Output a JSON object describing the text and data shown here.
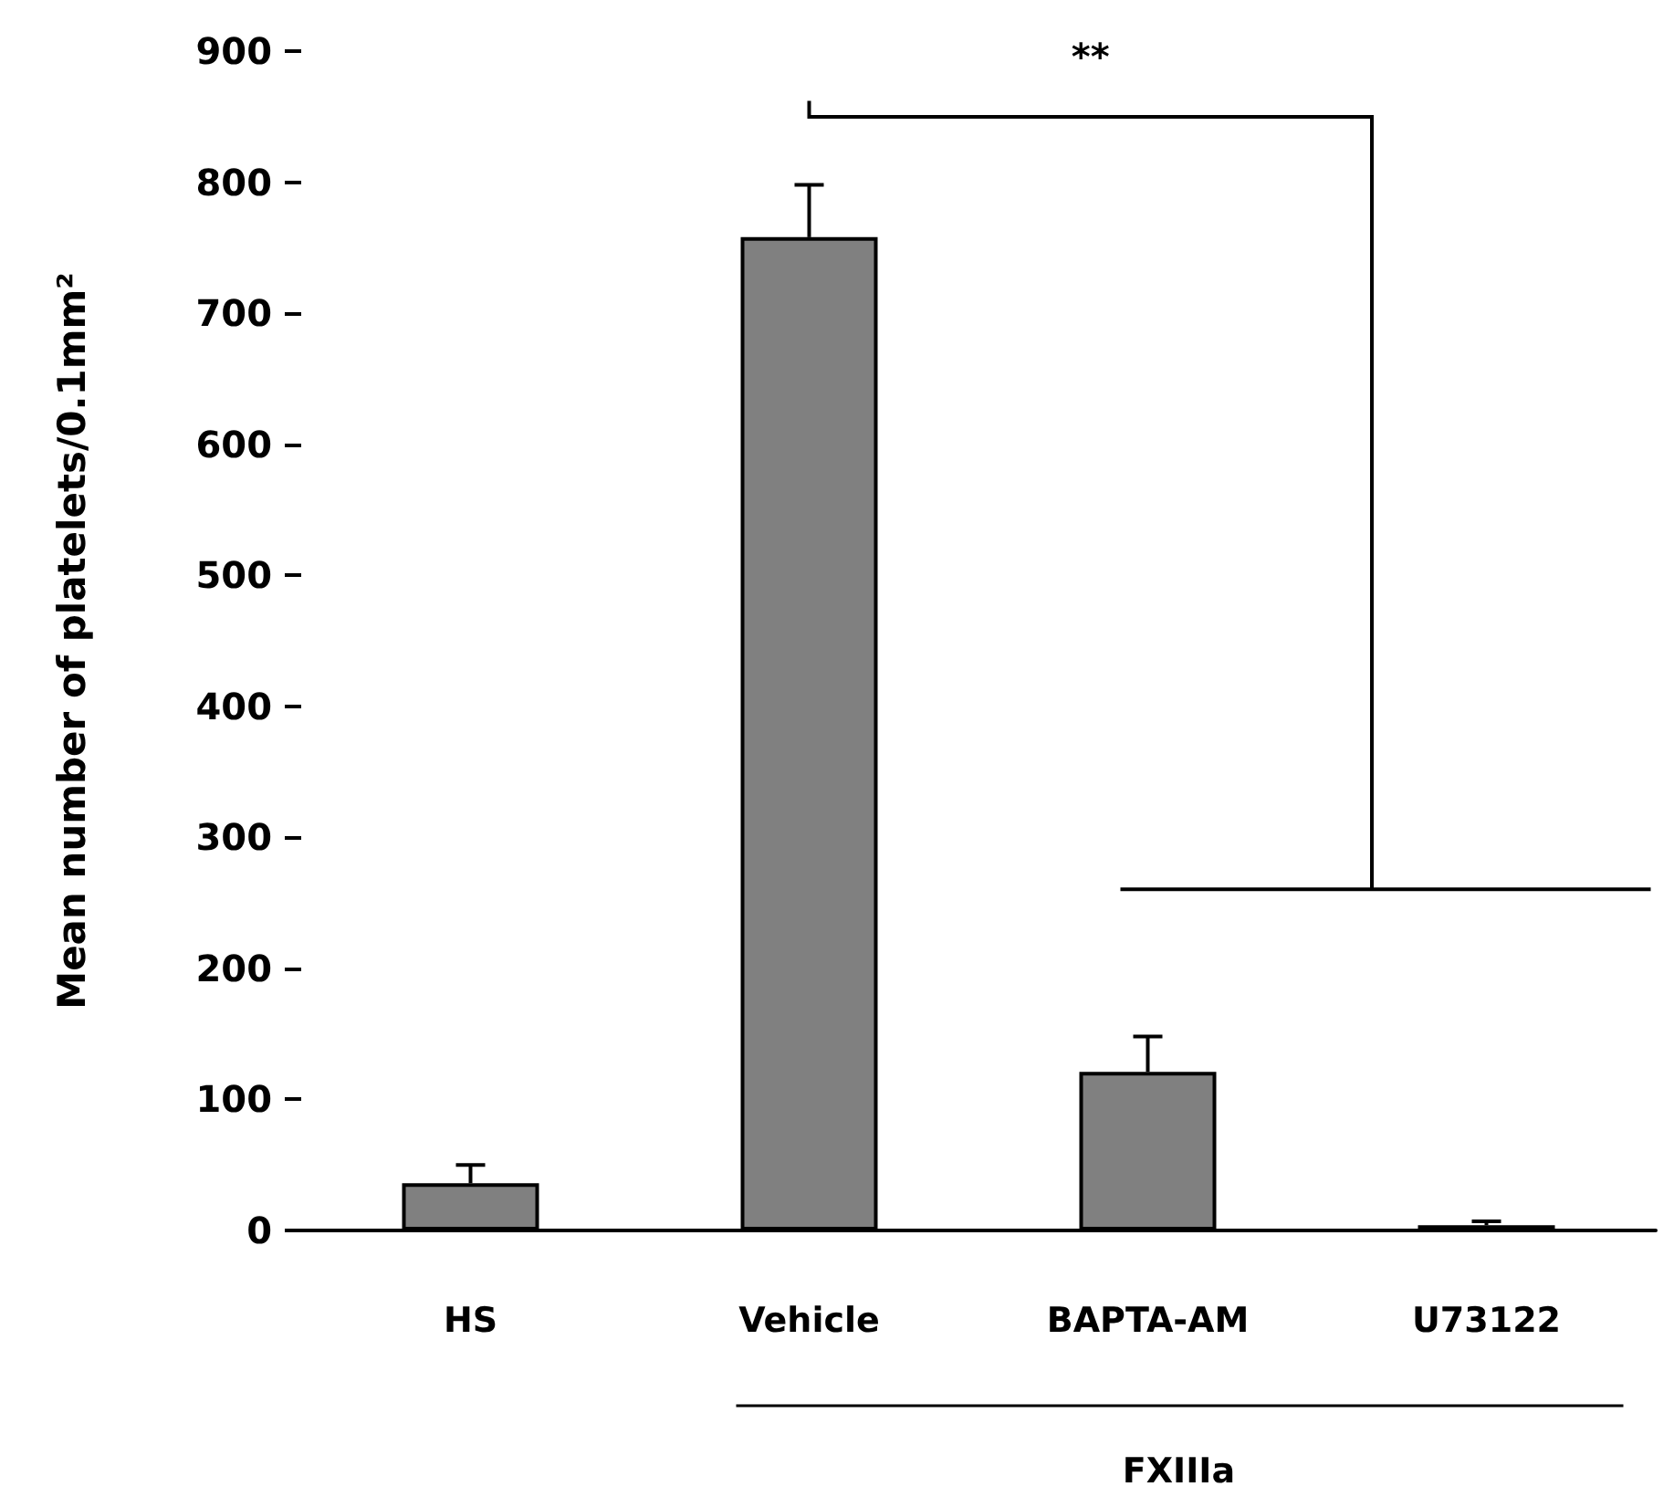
{
  "chart_data": {
    "type": "bar",
    "ylabel": "Mean number of platelets/0.1mm²",
    "categories": [
      "HS",
      "Vehicle",
      "BAPTA-AM",
      "U73122"
    ],
    "values": [
      36,
      758,
      121,
      4
    ],
    "errors": [
      [
        36,
        50
      ],
      [
        758,
        798
      ],
      [
        121,
        148
      ],
      [
        4,
        7
      ]
    ],
    "color": "#808080",
    "ylim": [
      0,
      900
    ],
    "yticks": [
      0,
      100,
      200,
      300,
      400,
      500,
      600,
      700,
      800,
      900
    ],
    "grid": false,
    "annotations": [
      "**",
      "FXIIIa"
    ]
  }
}
